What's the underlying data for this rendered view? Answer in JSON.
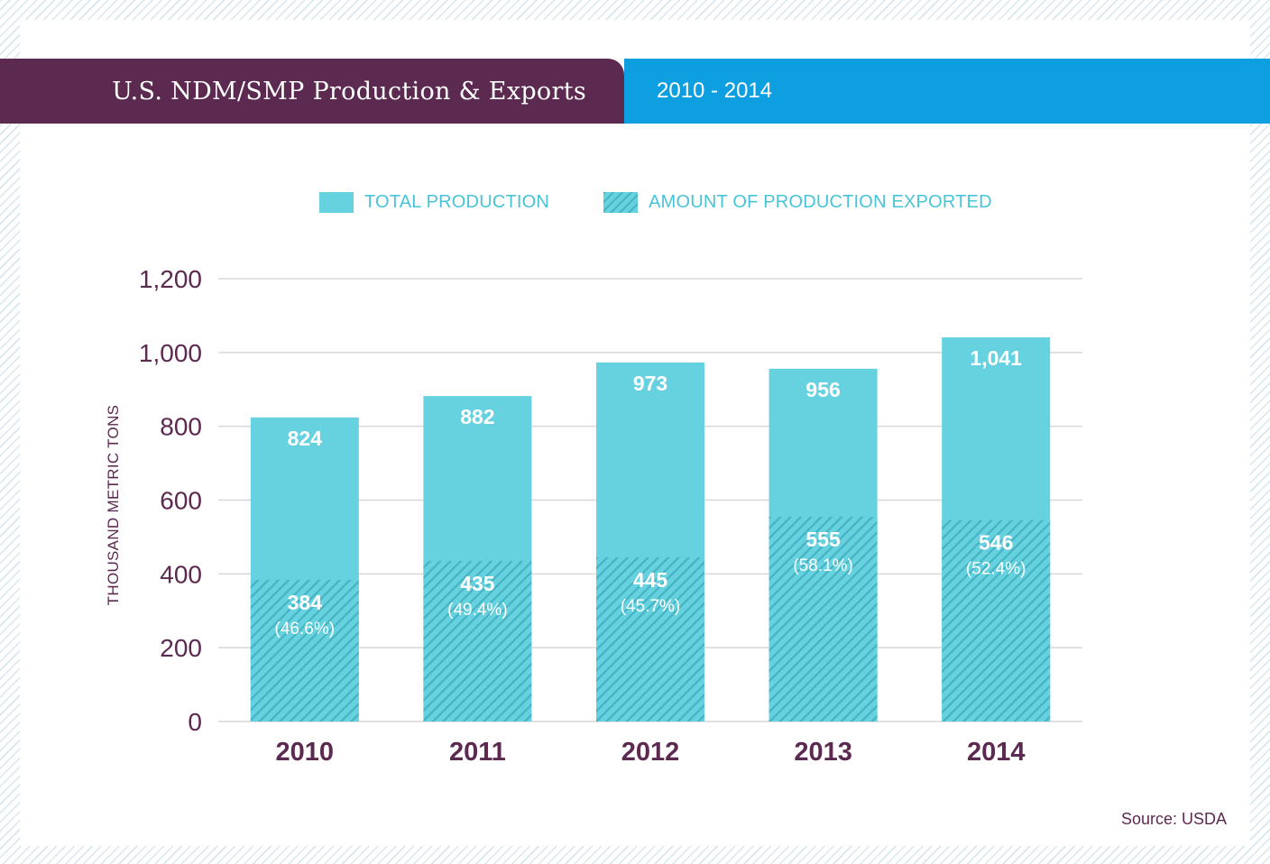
{
  "header": {
    "title": "U.S. NDM/SMP Production & Exports",
    "period": "2010 - 2014"
  },
  "legend": {
    "total_label": "TOTAL PRODUCTION",
    "exported_label": "AMOUNT OF PRODUCTION EXPORTED"
  },
  "source": "Source: USDA",
  "colors": {
    "purple": "#5c2950",
    "blue": "#0d9fdf",
    "bar": "#66d2e0",
    "bar_text": "#ffffff",
    "axis_text": "#5c2950",
    "grid": "#d7d7d7",
    "hatch_stripe": "#46b3c2",
    "legend_text": "#47c4d6"
  },
  "chart_data": {
    "type": "bar",
    "title": "U.S. NDM/SMP Production & Exports",
    "subtitle": "2010 - 2014",
    "xlabel": "",
    "ylabel": "THOUSAND METRIC TONS",
    "ylim": [
      0,
      1200
    ],
    "yticks": [
      0,
      200,
      400,
      600,
      800,
      1000,
      1200
    ],
    "ytick_labels": [
      "0",
      "200",
      "400",
      "600",
      "800",
      "1,000",
      "1,200"
    ],
    "grid": true,
    "legend_position": "top",
    "categories": [
      "2010",
      "2011",
      "2012",
      "2013",
      "2014"
    ],
    "series": [
      {
        "name": "TOTAL PRODUCTION",
        "values": [
          824,
          882,
          973,
          956,
          1041
        ],
        "labels": [
          "824",
          "882",
          "973",
          "956",
          "1,041"
        ]
      },
      {
        "name": "AMOUNT OF PRODUCTION EXPORTED",
        "values": [
          384,
          435,
          445,
          555,
          546
        ],
        "labels": [
          "384",
          "435",
          "445",
          "555",
          "546"
        ],
        "percent_labels": [
          "(46.6%)",
          "(49.4%)",
          "(45.7%)",
          "(58.1%)",
          "(52.4%)"
        ]
      }
    ]
  }
}
